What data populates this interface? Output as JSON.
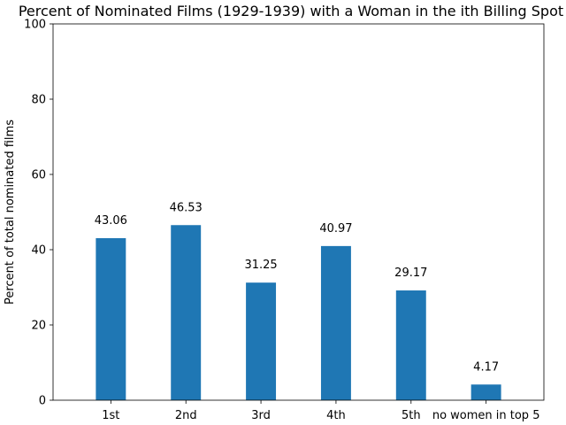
{
  "chart_data": {
    "type": "bar",
    "title": "Percent of Nominated Films (1929-1939) with a Woman in the ith Billing Spot",
    "xlabel": "",
    "ylabel": "Percent of total nominated films",
    "categories": [
      "1st",
      "2nd",
      "3rd",
      "4th",
      "5th",
      "no women in top 5"
    ],
    "values": [
      43.06,
      46.53,
      31.25,
      40.97,
      29.17,
      4.17
    ],
    "value_labels": [
      "43.06",
      "46.53",
      "31.25",
      "40.97",
      "29.17",
      "4.17"
    ],
    "ylim": [
      0,
      100
    ],
    "yticks": [
      0,
      20,
      40,
      60,
      80,
      100
    ],
    "grid": false,
    "legend": "none",
    "bar_color": "#1f77b4"
  }
}
